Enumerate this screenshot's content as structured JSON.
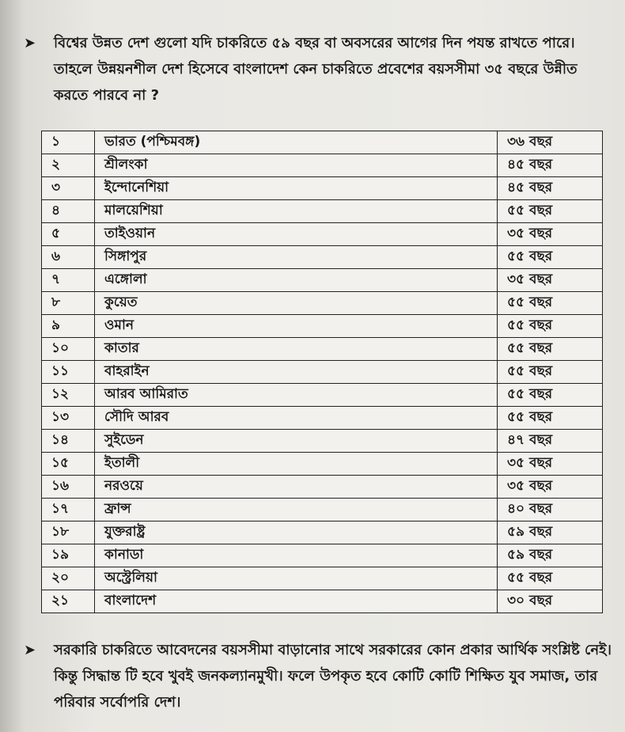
{
  "intro": {
    "bullet_icon": "arrowhead-bullet",
    "text": "বিশ্বের উন্নত দেশ গুলো যদি চাকরিতে ৫৯ বছর বা অবসরের আগের দিন পযন্ত রাখতে পারে। তাহলে উন্নয়নশীল দেশ হিসেবে বাংলাদেশ কেন চাকরিতে প্রবেশের বয়সসীমা ৩৫ বছরে উন্নীত করতে পারবে না ?"
  },
  "table": {
    "rows": [
      {
        "no": "১",
        "country": "ভারত (পশ্চিমবঙ্গ)",
        "age": "৩৬ বছর"
      },
      {
        "no": "২",
        "country": "শ্রীলংকা",
        "age": "৪৫ বছর"
      },
      {
        "no": "৩",
        "country": "ইন্দোনেশিয়া",
        "age": "৪৫ বছর"
      },
      {
        "no": "৪",
        "country": "মালয়েশিয়া",
        "age": "৫৫ বছর"
      },
      {
        "no": "৫",
        "country": "তাইওয়ান",
        "age": "৩৫ বছর"
      },
      {
        "no": "৬",
        "country": "সিঙ্গাপুর",
        "age": "৫৫ বছর"
      },
      {
        "no": "৭",
        "country": "এঙ্গোলা",
        "age": "৩৫ বছর"
      },
      {
        "no": "৮",
        "country": "কুয়েত",
        "age": "৫৫ বছর"
      },
      {
        "no": "৯",
        "country": "ওমান",
        "age": "৫৫ বছর"
      },
      {
        "no": "১০",
        "country": "কাতার",
        "age": "৫৫ বছর"
      },
      {
        "no": "১১",
        "country": "বাহরাইন",
        "age": "৫৫ বছর"
      },
      {
        "no": "১২",
        "country": "আরব আমিরাত",
        "age": "৫৫ বছর"
      },
      {
        "no": "১৩",
        "country": "সৌদি আরব",
        "age": "৫৫ বছর"
      },
      {
        "no": "১৪",
        "country": "সুইডেন",
        "age": "৪৭ বছর"
      },
      {
        "no": "১৫",
        "country": "ইতালী",
        "age": "৩৫ বছর"
      },
      {
        "no": "১৬",
        "country": "নরওয়ে",
        "age": "৩৫ বছর"
      },
      {
        "no": "১৭",
        "country": "ফ্রান্স",
        "age": "৪০ বছর"
      },
      {
        "no": "১৮",
        "country": "যুক্তরাষ্ট্র",
        "age": "৫৯ বছর"
      },
      {
        "no": "১৯",
        "country": "কানাডা",
        "age": "৫৯ বছর"
      },
      {
        "no": "২০",
        "country": "অস্ট্রেলিয়া",
        "age": "৫৫ বছর"
      },
      {
        "no": "২১",
        "country": "বাংলাদেশ",
        "age": "৩০ বছর"
      }
    ]
  },
  "conclusion": {
    "bullet_icon": "arrowhead-bullet",
    "text": "সরকারি চাকরিতে আবেদনের বয়সসীমা বাড়ানোর সাথে সরকারের কোন প্রকার আর্থিক সংশ্লিষ্ট নেই। কিন্তু সিদ্ধান্ত টি হবে খুবই জনকল্যানমুখী। ফলে উপকৃত হবে কোটি কোটি শিক্ষিত যুব সমাজ, তার পরিবার সর্বোপরি দেশ।"
  }
}
